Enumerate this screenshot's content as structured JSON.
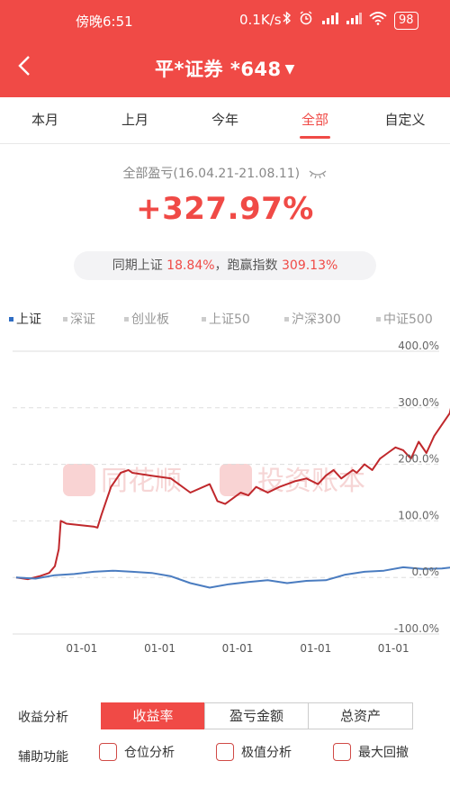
{
  "status_bar": {
    "time": "傍晚6:51",
    "network_speed": "0.1K/s",
    "battery": "98",
    "icons": [
      "bluetooth-icon",
      "alarm-icon",
      "signal-hd-icon",
      "signal-icon",
      "wifi-icon",
      "battery-icon"
    ]
  },
  "nav": {
    "title": "平*证券 *648",
    "caret": "▼"
  },
  "tabs": [
    {
      "label": "本月",
      "active": false
    },
    {
      "label": "上月",
      "active": false
    },
    {
      "label": "今年",
      "active": false
    },
    {
      "label": "全部",
      "active": true
    },
    {
      "label": "自定义",
      "active": false
    }
  ],
  "summary": {
    "label": "全部盈亏(16.04.21-21.08.11)",
    "total_return": "+327.97%",
    "compare_prefix": "同期上证 ",
    "index_return": "18.84%",
    "compare_mid": "，跑赢指数 ",
    "outperform": "309.13%"
  },
  "legend": [
    {
      "label": "上证",
      "active": true
    },
    {
      "label": "深证",
      "active": false
    },
    {
      "label": "创业板",
      "active": false
    },
    {
      "label": "上证50",
      "active": false
    },
    {
      "label": "沪深300",
      "active": false
    },
    {
      "label": "中证500",
      "active": false
    }
  ],
  "chart_data": {
    "type": "line",
    "y_ticks": [
      "400.0%",
      "300.0%",
      "200.0%",
      "100.0%",
      "0.0%",
      "-100.0%"
    ],
    "ylim": [
      -100,
      400
    ],
    "x_ticks": [
      "01-01",
      "01-01",
      "01-01",
      "01-01",
      "01-01"
    ],
    "x_tick_positions": [
      0.147,
      0.364,
      0.58,
      0.797,
      1.013
    ],
    "watermark": [
      "同花顺",
      "投资账本"
    ],
    "colors": {
      "portfolio": "#c0282c",
      "index": "#4a7cc0"
    },
    "series": [
      {
        "key": "portfolio",
        "x": [
          0,
          0.03,
          0.06,
          0.085,
          0.1,
          0.11,
          0.115,
          0.13,
          0.2,
          0.21,
          0.22,
          0.235,
          0.24,
          0.245,
          0.27,
          0.29,
          0.3,
          0.35,
          0.4,
          0.45,
          0.5,
          0.52,
          0.54,
          0.56,
          0.58,
          0.6,
          0.62,
          0.65,
          0.68,
          0.7,
          0.72,
          0.75,
          0.78,
          0.8,
          0.82,
          0.84,
          0.87,
          0.88,
          0.9,
          0.92,
          0.94,
          0.96,
          0.98,
          1.0,
          1.02,
          1.04,
          1.06,
          1.08,
          1.1,
          1.12,
          1.13
        ],
        "values": [
          0,
          -3,
          2,
          8,
          20,
          50,
          100,
          95,
          90,
          88,
          110,
          140,
          150,
          160,
          185,
          190,
          185,
          180,
          175,
          150,
          165,
          135,
          130,
          140,
          150,
          145,
          160,
          150,
          160,
          165,
          170,
          175,
          165,
          180,
          190,
          175,
          190,
          185,
          200,
          190,
          210,
          220,
          230,
          225,
          210,
          240,
          220,
          250,
          270,
          290,
          320
        ]
      },
      {
        "key": "index",
        "x": [
          0,
          0.05,
          0.1,
          0.15,
          0.2,
          0.25,
          0.3,
          0.35,
          0.4,
          0.45,
          0.5,
          0.55,
          0.6,
          0.65,
          0.7,
          0.75,
          0.8,
          0.85,
          0.9,
          0.95,
          1.0,
          1.05,
          1.1,
          1.13
        ],
        "values": [
          0,
          -2,
          4,
          6,
          10,
          12,
          10,
          8,
          2,
          -10,
          -18,
          -12,
          -8,
          -5,
          -10,
          -6,
          -5,
          5,
          10,
          12,
          18,
          15,
          16,
          18
        ]
      }
    ]
  },
  "controls": {
    "analysis_label": "收益分析",
    "segments": [
      {
        "label": "收益率",
        "active": true
      },
      {
        "label": "盈亏金额",
        "active": false
      },
      {
        "label": "总资产",
        "active": false
      }
    ],
    "aux_label": "辅助功能",
    "checks": [
      {
        "label": "仓位分析"
      },
      {
        "label": "极值分析"
      },
      {
        "label": "最大回撤"
      }
    ]
  }
}
